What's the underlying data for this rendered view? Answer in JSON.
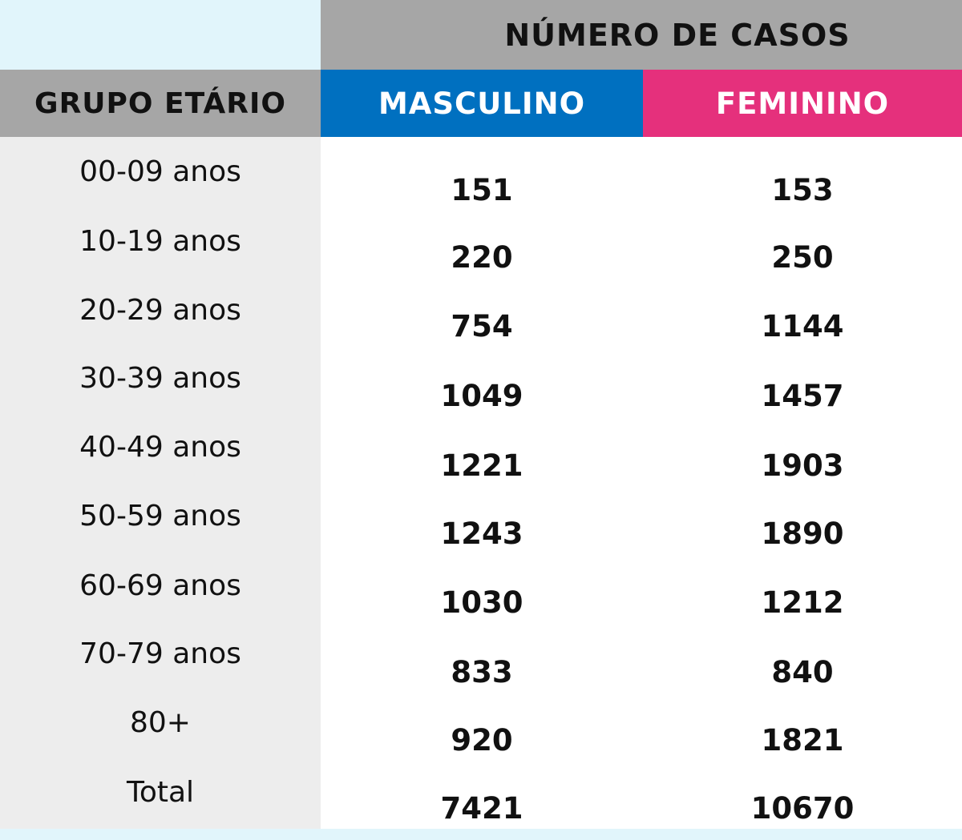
{
  "table": {
    "header_cases": "NÚMERO DE CASOS",
    "header_age": "GRUPO ETÁRIO",
    "header_male": "MASCULINO",
    "header_female": "FEMININO",
    "rows": [
      {
        "age": "00-09 anos",
        "male": "151",
        "female": "153"
      },
      {
        "age": "10-19 anos",
        "male": "220",
        "female": "250"
      },
      {
        "age": "20-29 anos",
        "male": "754",
        "female": "1144"
      },
      {
        "age": "30-39 anos",
        "male": "1049",
        "female": "1457"
      },
      {
        "age": "40-49 anos",
        "male": "1221",
        "female": "1903"
      },
      {
        "age": "50-59 anos",
        "male": "1243",
        "female": "1890"
      },
      {
        "age": "60-69 anos",
        "male": "1030",
        "female": "1212"
      },
      {
        "age": "70-79 anos",
        "male": "833",
        "female": "840"
      },
      {
        "age": "80+",
        "male": "920",
        "female": "1821"
      },
      {
        "age": "Total",
        "male": "7421",
        "female": "10670"
      }
    ]
  },
  "colors": {
    "male": "#0070c0",
    "female": "#e5307c",
    "header_gray": "#a6a6a6",
    "background": "#e1f5fb"
  },
  "chart_data": {
    "type": "table",
    "title": "NÚMERO DE CASOS",
    "columns": [
      "GRUPO ETÁRIO",
      "MASCULINO",
      "FEMININO"
    ],
    "categories": [
      "00-09 anos",
      "10-19 anos",
      "20-29 anos",
      "30-39 anos",
      "40-49 anos",
      "50-59 anos",
      "60-69 anos",
      "70-79 anos",
      "80+",
      "Total"
    ],
    "series": [
      {
        "name": "MASCULINO",
        "values": [
          151,
          220,
          754,
          1049,
          1221,
          1243,
          1030,
          833,
          920,
          7421
        ]
      },
      {
        "name": "FEMININO",
        "values": [
          153,
          250,
          1144,
          1457,
          1903,
          1890,
          1212,
          840,
          1821,
          10670
        ]
      }
    ]
  }
}
